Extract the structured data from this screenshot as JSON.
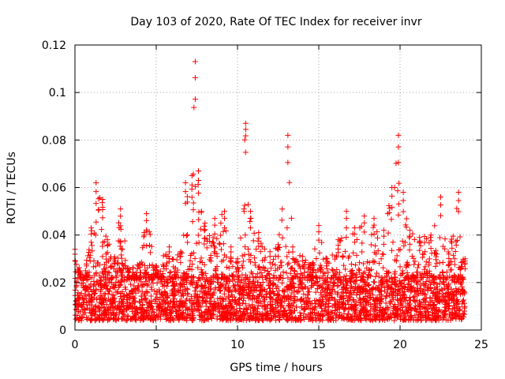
{
  "chart_data": {
    "type": "scatter",
    "title": "Day 103 of 2020, Rate Of TEC Index for receiver invr",
    "xlabel": "GPS time / hours",
    "ylabel": "ROTI / TECUs",
    "xlim": [
      0,
      25
    ],
    "ylim": [
      0,
      0.12
    ],
    "grid": true,
    "marker": "+",
    "point_color": "#ff0000",
    "x_ticks": [
      {
        "value": 0,
        "label": "0"
      },
      {
        "value": 5,
        "label": "5"
      },
      {
        "value": 10,
        "label": "10"
      },
      {
        "value": 15,
        "label": "15"
      },
      {
        "value": 20,
        "label": "20"
      },
      {
        "value": 25,
        "label": "25"
      }
    ],
    "y_ticks": [
      {
        "value": 0,
        "label": "0"
      },
      {
        "value": 0.02,
        "label": "0.02"
      },
      {
        "value": 0.04,
        "label": "0.04"
      },
      {
        "value": 0.06,
        "label": "0.06"
      },
      {
        "value": 0.08,
        "label": "0.08"
      },
      {
        "value": 0.1,
        "label": "0.1"
      },
      {
        "value": 0.12,
        "label": "0.12"
      }
    ],
    "series": [
      {
        "name": "ROTI",
        "x_range": [
          0,
          24
        ],
        "typical_band": [
          0.004,
          0.022
        ],
        "envelope": [
          {
            "x": 0.0,
            "y": 0.034
          },
          {
            "x": 0.5,
            "y": 0.021
          },
          {
            "x": 1.0,
            "y": 0.043
          },
          {
            "x": 1.3,
            "y": 0.062
          },
          {
            "x": 1.7,
            "y": 0.055
          },
          {
            "x": 2.0,
            "y": 0.038
          },
          {
            "x": 2.4,
            "y": 0.03
          },
          {
            "x": 2.8,
            "y": 0.051
          },
          {
            "x": 3.3,
            "y": 0.026
          },
          {
            "x": 4.0,
            "y": 0.028
          },
          {
            "x": 4.4,
            "y": 0.049
          },
          {
            "x": 5.0,
            "y": 0.027
          },
          {
            "x": 5.8,
            "y": 0.035
          },
          {
            "x": 6.5,
            "y": 0.033
          },
          {
            "x": 6.8,
            "y": 0.062
          },
          {
            "x": 7.2,
            "y": 0.065
          },
          {
            "x": 7.4,
            "y": 0.113
          },
          {
            "x": 7.6,
            "y": 0.067
          },
          {
            "x": 8.0,
            "y": 0.045
          },
          {
            "x": 8.6,
            "y": 0.047
          },
          {
            "x": 9.2,
            "y": 0.05
          },
          {
            "x": 9.6,
            "y": 0.035
          },
          {
            "x": 10.0,
            "y": 0.03
          },
          {
            "x": 10.5,
            "y": 0.087
          },
          {
            "x": 10.8,
            "y": 0.05
          },
          {
            "x": 11.3,
            "y": 0.041
          },
          {
            "x": 12.0,
            "y": 0.033
          },
          {
            "x": 12.5,
            "y": 0.036
          },
          {
            "x": 13.1,
            "y": 0.082
          },
          {
            "x": 13.4,
            "y": 0.035
          },
          {
            "x": 14.0,
            "y": 0.031
          },
          {
            "x": 14.6,
            "y": 0.028
          },
          {
            "x": 15.0,
            "y": 0.044
          },
          {
            "x": 15.5,
            "y": 0.03
          },
          {
            "x": 16.2,
            "y": 0.038
          },
          {
            "x": 16.7,
            "y": 0.05
          },
          {
            "x": 17.2,
            "y": 0.043
          },
          {
            "x": 17.8,
            "y": 0.048
          },
          {
            "x": 18.4,
            "y": 0.047
          },
          {
            "x": 19.0,
            "y": 0.042
          },
          {
            "x": 19.5,
            "y": 0.06
          },
          {
            "x": 19.9,
            "y": 0.082
          },
          {
            "x": 20.2,
            "y": 0.058
          },
          {
            "x": 20.6,
            "y": 0.042
          },
          {
            "x": 21.2,
            "y": 0.039
          },
          {
            "x": 21.9,
            "y": 0.04
          },
          {
            "x": 22.5,
            "y": 0.056
          },
          {
            "x": 23.0,
            "y": 0.032
          },
          {
            "x": 23.6,
            "y": 0.058
          },
          {
            "x": 24.0,
            "y": 0.03
          }
        ]
      }
    ]
  }
}
